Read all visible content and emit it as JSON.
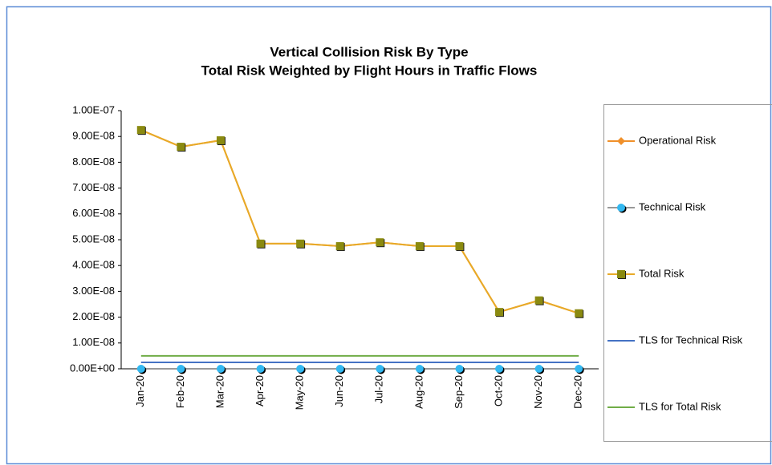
{
  "chart_data": {
    "type": "line",
    "title": "Vertical Collision Risk By Type",
    "subtitle": "Total Risk Weighted by Flight Hours in Traffic Flows",
    "categories": [
      "Jan-20",
      "Feb-20",
      "Mar-20",
      "Apr-20",
      "May-20",
      "Jun-20",
      "Jul-20",
      "Aug-20",
      "Sep-20",
      "Oct-20",
      "Nov-20",
      "Dec-20"
    ],
    "series": [
      {
        "name": "Operational Risk",
        "color": "#f0902a",
        "marker": "diamond",
        "values": [
          9.25e-08,
          8.6e-08,
          8.85e-08,
          4.85e-08,
          4.85e-08,
          4.75e-08,
          4.9e-08,
          4.75e-08,
          4.75e-08,
          2.2e-08,
          2.65e-08,
          2.15e-08
        ]
      },
      {
        "name": "Technical Risk",
        "color": "#999999",
        "marker": "circle",
        "values": [
          0,
          0,
          0,
          0,
          0,
          0,
          0,
          0,
          0,
          0,
          0,
          0
        ]
      },
      {
        "name": "Total Risk",
        "color": "#e8aa28",
        "marker": "square",
        "values": [
          9.25e-08,
          8.6e-08,
          8.85e-08,
          4.85e-08,
          4.85e-08,
          4.75e-08,
          4.9e-08,
          4.75e-08,
          4.75e-08,
          2.2e-08,
          2.65e-08,
          2.15e-08
        ]
      },
      {
        "name": "TLS for Technical Risk",
        "color": "#4472c4",
        "marker": "none",
        "values": [
          2.5e-09,
          2.5e-09,
          2.5e-09,
          2.5e-09,
          2.5e-09,
          2.5e-09,
          2.5e-09,
          2.5e-09,
          2.5e-09,
          2.5e-09,
          2.5e-09,
          2.5e-09
        ]
      },
      {
        "name": "TLS for Total Risk",
        "color": "#70ad47",
        "marker": "none",
        "values": [
          5e-09,
          5e-09,
          5e-09,
          5e-09,
          5e-09,
          5e-09,
          5e-09,
          5e-09,
          5e-09,
          5e-09,
          5e-09,
          5e-09
        ]
      }
    ],
    "ylim": [
      0,
      1e-07
    ],
    "yticks": [
      {
        "value": 0,
        "label": "0.00E+00"
      },
      {
        "value": 1e-08,
        "label": "1.00E-08"
      },
      {
        "value": 2e-08,
        "label": "2.00E-08"
      },
      {
        "value": 3e-08,
        "label": "3.00E-08"
      },
      {
        "value": 4e-08,
        "label": "4.00E-08"
      },
      {
        "value": 5e-08,
        "label": "5.00E-08"
      },
      {
        "value": 6e-08,
        "label": "6.00E-08"
      },
      {
        "value": 7e-08,
        "label": "7.00E-08"
      },
      {
        "value": 8e-08,
        "label": "8.00E-08"
      },
      {
        "value": 9e-08,
        "label": "9.00E-08"
      },
      {
        "value": 1e-07,
        "label": "1.00E-07"
      }
    ],
    "grid": false,
    "legend": "right"
  }
}
